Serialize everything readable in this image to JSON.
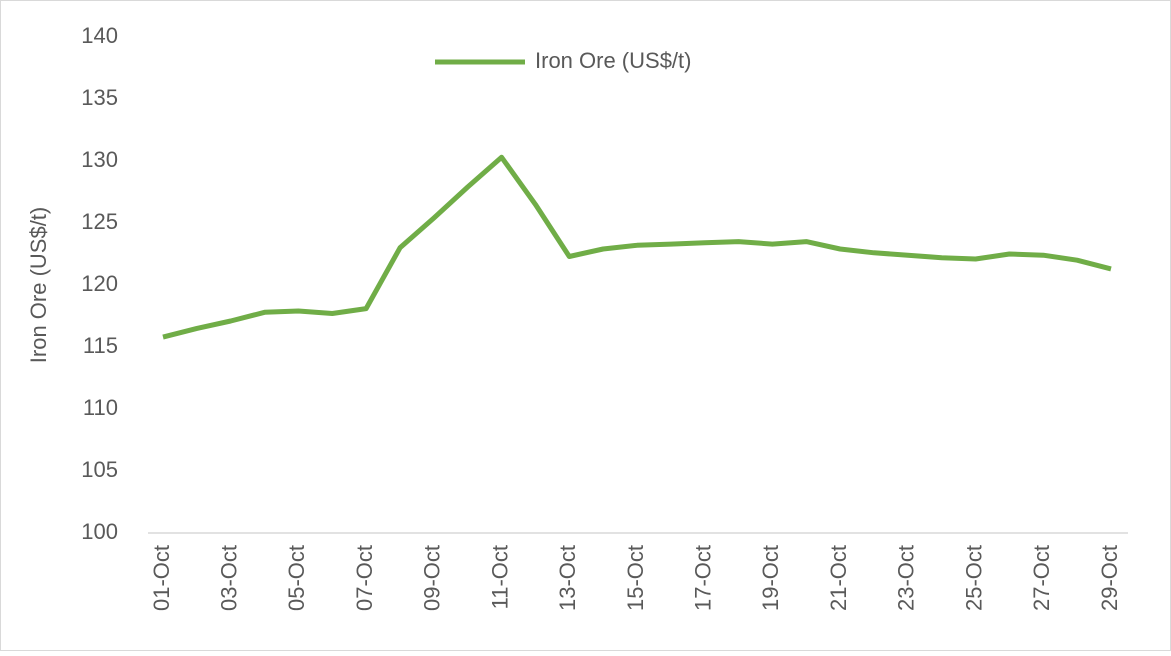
{
  "chart_data": {
    "type": "line",
    "y_label": "Iron Ore  (US$/t)",
    "categories": [
      "01-Oct",
      null,
      "03-Oct",
      null,
      "05-Oct",
      null,
      "07-Oct",
      null,
      "09-Oct",
      null,
      "11-Oct",
      null,
      "13-Oct",
      null,
      "15-Oct",
      null,
      "17-Oct",
      null,
      "19-Oct",
      null,
      "21-Oct",
      null,
      "23-Oct",
      null,
      "25-Oct",
      null,
      "27-Oct",
      null,
      "29-Oct"
    ],
    "series": [
      {
        "name": "Iron Ore  (US$/t)",
        "color": "#70ad47",
        "values": [
          115.8,
          116.5,
          117.1,
          117.8,
          117.9,
          117.7,
          118.1,
          123.0,
          125.4,
          127.9,
          130.3,
          126.5,
          122.3,
          122.9,
          123.2,
          123.3,
          123.4,
          123.5,
          123.3,
          123.5,
          122.9,
          122.6,
          122.4,
          122.2,
          122.1,
          122.5,
          122.4,
          122.0,
          121.3
        ]
      }
    ],
    "ylim": [
      100,
      140
    ],
    "yticks": [
      100,
      105,
      110,
      115,
      120,
      125,
      130,
      135,
      140
    ],
    "legend": "top",
    "grid": false
  }
}
